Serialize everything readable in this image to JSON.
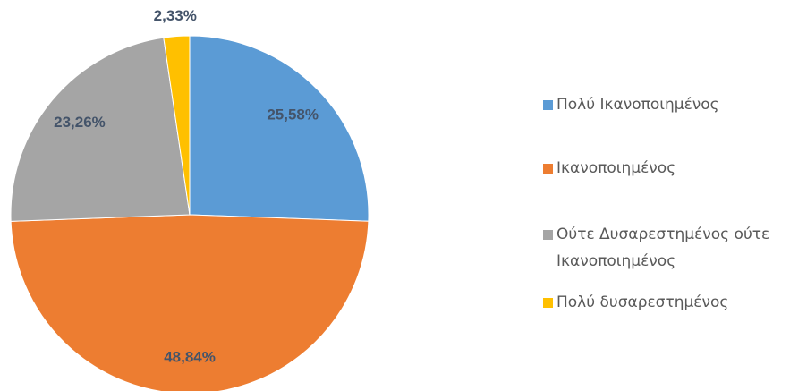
{
  "chart_data": {
    "type": "pie",
    "categories": [
      "Πολύ Ικανοποιημένος",
      "Ικανοποιημένος",
      "Ούτε Δυσαρεστημένος ούτε Ικανοποιημένος",
      "Πολύ δυσαρεστημένος"
    ],
    "values": [
      25.58,
      48.84,
      23.26,
      2.33
    ],
    "value_labels": [
      "25,58%",
      "48,84%",
      "23,26%",
      "2,33%"
    ],
    "colors": [
      "#5b9bd5",
      "#ed7d31",
      "#a5a5a5",
      "#ffc000"
    ],
    "legend": "right"
  }
}
